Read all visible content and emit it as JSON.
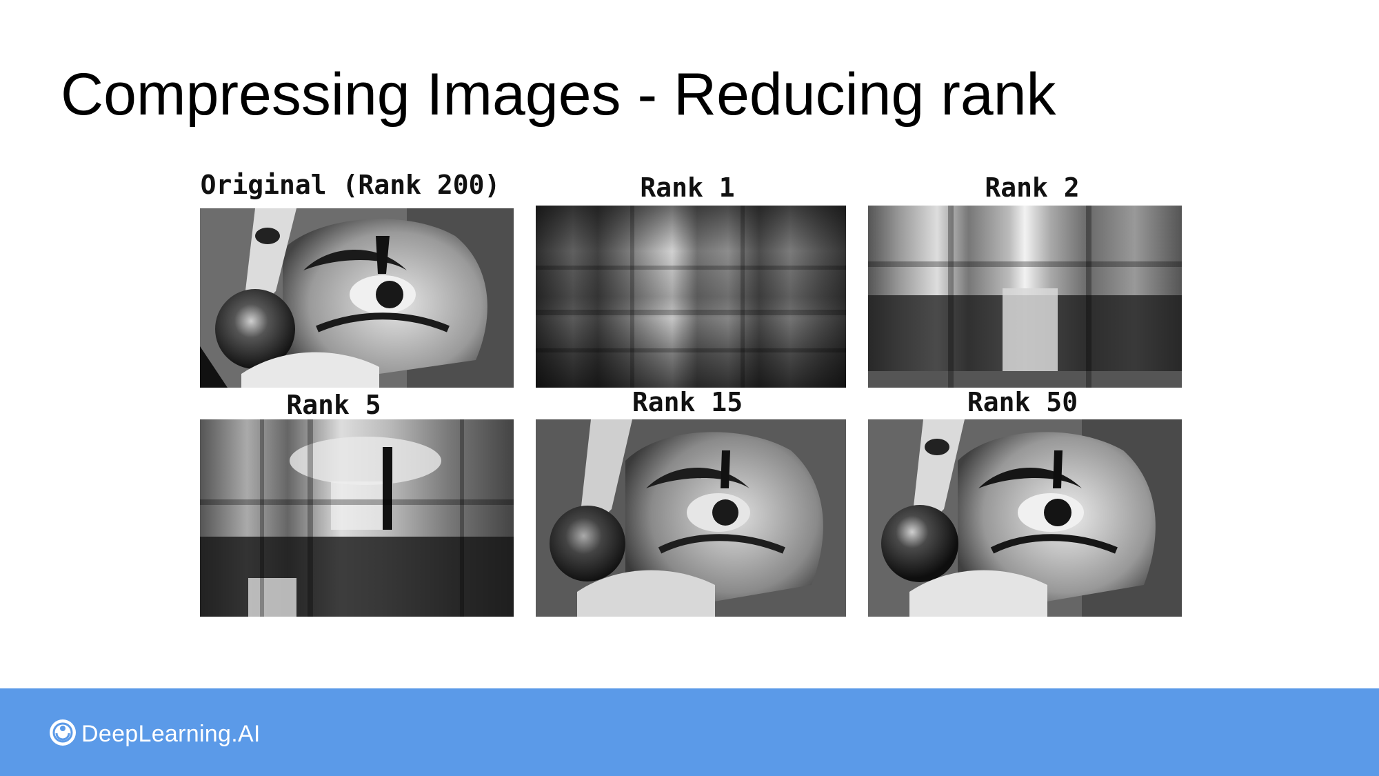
{
  "slide": {
    "title": "Compressing Images - Reducing rank"
  },
  "panels": [
    {
      "caption": "Original (Rank 200)",
      "rank": 200
    },
    {
      "caption": "Rank 1",
      "rank": 1
    },
    {
      "caption": "Rank 2",
      "rank": 2
    },
    {
      "caption": "Rank 5",
      "rank": 5
    },
    {
      "caption": "Rank 15",
      "rank": 15
    },
    {
      "caption": "Rank 50",
      "rank": 50
    }
  ],
  "footer": {
    "brand": "DeepLearning.AI",
    "background_color": "#5b9ae8",
    "logo_icon": "deeplearning-logo-icon"
  }
}
